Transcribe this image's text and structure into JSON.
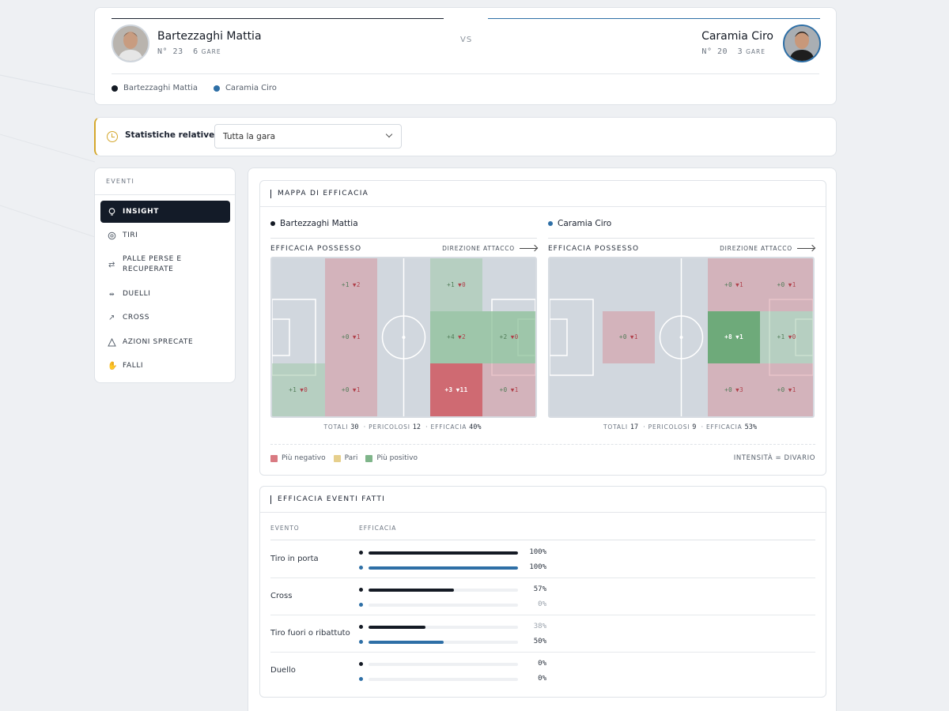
{
  "header": {
    "player1": {
      "name": "Bartezzaghi Mattia",
      "number": "N° 23",
      "games": "6",
      "games_label": "GARE"
    },
    "player2": {
      "name": "Caramia Ciro",
      "number": "N° 20",
      "games": "3",
      "games_label": "GARE"
    },
    "vs": "VS",
    "legend": [
      "Bartezzaghi Mattia",
      "Caramia Ciro"
    ]
  },
  "filter": {
    "label": "Statistiche relative a",
    "selected": "Tutta la gara"
  },
  "sidebar": {
    "title": "EVENTI",
    "items": [
      {
        "label": "INSIGHT",
        "icon": "lightbulb-icon",
        "active": true
      },
      {
        "label": "TIRI",
        "icon": "ball-icon"
      },
      {
        "label": "PALLE PERSE E RECUPERATE",
        "icon": "swap-icon"
      },
      {
        "label": "DUELLI",
        "icon": "duel-icon"
      },
      {
        "label": "CROSS",
        "icon": "cross-arrow-icon"
      },
      {
        "label": "AZIONI SPRECATE",
        "icon": "warning-icon"
      },
      {
        "label": "FALLI",
        "icon": "hand-icon"
      }
    ]
  },
  "map_panel": {
    "title": "MAPPA DI EFFICACIA",
    "subtitle": "EFFICACIA POSSESSO",
    "direction_label": "DIREZIONE ATTACCO",
    "players": [
      {
        "name": "Bartezzaghi Mattia",
        "zones": [
          {
            "col": 1,
            "row": 0,
            "pos": "+1",
            "neg": "▼2",
            "tone": "neg-light"
          },
          {
            "col": 1,
            "row": 1,
            "pos": "+0",
            "neg": "▼1",
            "tone": "neg-light"
          },
          {
            "col": 1,
            "row": 2,
            "pos": "+0",
            "neg": "▼1",
            "tone": "neg-light"
          },
          {
            "col": 0,
            "row": 2,
            "pos": "+1",
            "neg": "▼0",
            "tone": "pos-light"
          },
          {
            "col": 3,
            "row": 0,
            "pos": "+1",
            "neg": "▼0",
            "tone": "pos-light"
          },
          {
            "col": 3,
            "row": 1,
            "pos": "+4",
            "neg": "▼2",
            "tone": "pos-mid"
          },
          {
            "col": 3,
            "row": 2,
            "pos": "+3",
            "neg": "▼11",
            "tone": "neg-strong"
          },
          {
            "col": 4,
            "row": 1,
            "pos": "+2",
            "neg": "▼0",
            "tone": "pos-mid"
          },
          {
            "col": 4,
            "row": 2,
            "pos": "+0",
            "neg": "▼1",
            "tone": "neg-light"
          }
        ],
        "totals": {
          "totali_label": "TOTALI",
          "totali": "30",
          "pericolosi_label": "PERICOLOSI",
          "pericolosi": "12",
          "efficacia_label": "EFFICACIA",
          "efficacia": "40%"
        }
      },
      {
        "name": "Caramia Ciro",
        "zones": [
          {
            "col": 1,
            "row": 1,
            "pos": "+0",
            "neg": "▼1",
            "tone": "neg-light"
          },
          {
            "col": 3,
            "row": 0,
            "pos": "+0",
            "neg": "▼1",
            "tone": "neg-light"
          },
          {
            "col": 3,
            "row": 1,
            "pos": "+8",
            "neg": "▼1",
            "tone": "pos-strong"
          },
          {
            "col": 3,
            "row": 2,
            "pos": "+0",
            "neg": "▼3",
            "tone": "neg-light"
          },
          {
            "col": 4,
            "row": 0,
            "pos": "+0",
            "neg": "▼1",
            "tone": "neg-light"
          },
          {
            "col": 4,
            "row": 1,
            "pos": "+1",
            "neg": "▼0",
            "tone": "pos-light"
          },
          {
            "col": 4,
            "row": 2,
            "pos": "+0",
            "neg": "▼1",
            "tone": "neg-light"
          }
        ],
        "totals": {
          "totali_label": "TOTALI",
          "totali": "17",
          "pericolosi_label": "PERICOLOSI",
          "pericolosi": "9",
          "efficacia_label": "EFFICACIA",
          "efficacia": "53%"
        }
      }
    ],
    "legend": {
      "negative": "Più negativo",
      "even": "Pari",
      "positive": "Più positivo",
      "note": "INTENSITÀ = DIVARIO"
    },
    "colors": {
      "negative": "#d97a82",
      "even": "#e6cf8c",
      "positive": "#7fb58a"
    }
  },
  "events_panel": {
    "title": "EFFICACIA EVENTI FATTI",
    "col_event": "EVENTO",
    "col_eff": "EFFICACIA",
    "rows": [
      {
        "name": "Tiro in porta",
        "p1": 100,
        "p1_label": "100%",
        "p2": 100,
        "p2_label": "100%"
      },
      {
        "name": "Cross",
        "p1": 57,
        "p1_label": "57%",
        "p2": 0,
        "p2_label": "0%"
      },
      {
        "name": "Tiro fuori o ribattuto",
        "p1": 38,
        "p1_label": "38%",
        "p2": 50,
        "p2_label": "50%"
      },
      {
        "name": "Duello",
        "p1": 0,
        "p1_label": "0%",
        "p2": 0,
        "p2_label": "0%"
      }
    ]
  }
}
